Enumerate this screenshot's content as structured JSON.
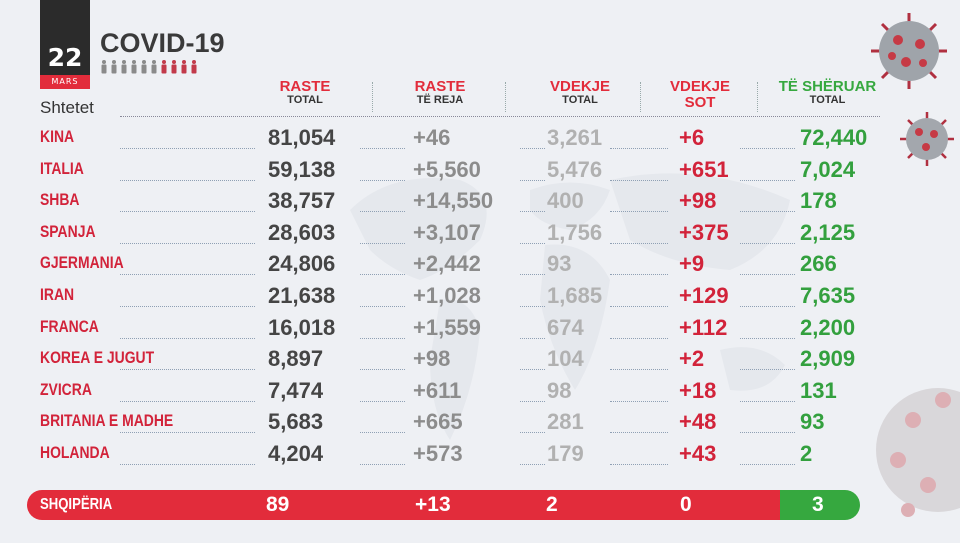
{
  "date": {
    "day": "22",
    "month": "MARS"
  },
  "title": "COVID-19",
  "states_label": "Shtetet",
  "columns": [
    {
      "line1": "RASTE",
      "line2": "TOTAL"
    },
    {
      "line1": "RASTE",
      "line2": "TË REJA"
    },
    {
      "line1": "VDEKJE",
      "line2": "TOTAL"
    },
    {
      "line1": "VDEKJE",
      "line2": "SOT"
    },
    {
      "line1": "TË SHËRUAR",
      "line2": "TOTAL"
    }
  ],
  "rows": [
    {
      "country": "KINA",
      "total": "81,054",
      "new": "+46",
      "deaths": "3,261",
      "today": "+6",
      "recovered": "72,440"
    },
    {
      "country": "ITALIA",
      "total": "59,138",
      "new": "+5,560",
      "deaths": "5,476",
      "today": "+651",
      "recovered": "7,024"
    },
    {
      "country": "SHBA",
      "total": "38,757",
      "new": "+14,550",
      "deaths": "400",
      "today": "+98",
      "recovered": "178"
    },
    {
      "country": "SPANJA",
      "total": "28,603",
      "new": "+3,107",
      "deaths": "1,756",
      "today": "+375",
      "recovered": "2,125"
    },
    {
      "country": "GJERMANIA",
      "total": "24,806",
      "new": "+2,442",
      "deaths": "93",
      "today": "+9",
      "recovered": "266"
    },
    {
      "country": "IRAN",
      "total": "21,638",
      "new": "+1,028",
      "deaths": "1,685",
      "today": "+129",
      "recovered": "7,635"
    },
    {
      "country": "FRANCA",
      "total": "16,018",
      "new": "+1,559",
      "deaths": "674",
      "today": "+112",
      "recovered": "2,200"
    },
    {
      "country": "KOREA E JUGUT",
      "total": "8,897",
      "new": "+98",
      "deaths": "104",
      "today": "+2",
      "recovered": "2,909"
    },
    {
      "country": "ZVICRA",
      "total": "7,474",
      "new": "+611",
      "deaths": "98",
      "today": "+18",
      "recovered": "131"
    },
    {
      "country": "BRITANIA E MADHE",
      "total": "5,683",
      "new": "+665",
      "deaths": "281",
      "today": "+48",
      "recovered": "93"
    },
    {
      "country": "HOLANDA",
      "total": "4,204",
      "new": "+573",
      "deaths": "179",
      "today": "+43",
      "recovered": "2"
    }
  ],
  "albania": {
    "country": "SHQIPËRIA",
    "total": "89",
    "new": "+13",
    "deaths": "2",
    "today": "0",
    "recovered": "3"
  },
  "colors": {
    "red": "#e22c3b",
    "green": "#36a83f",
    "dark": "#2b2b2b"
  }
}
